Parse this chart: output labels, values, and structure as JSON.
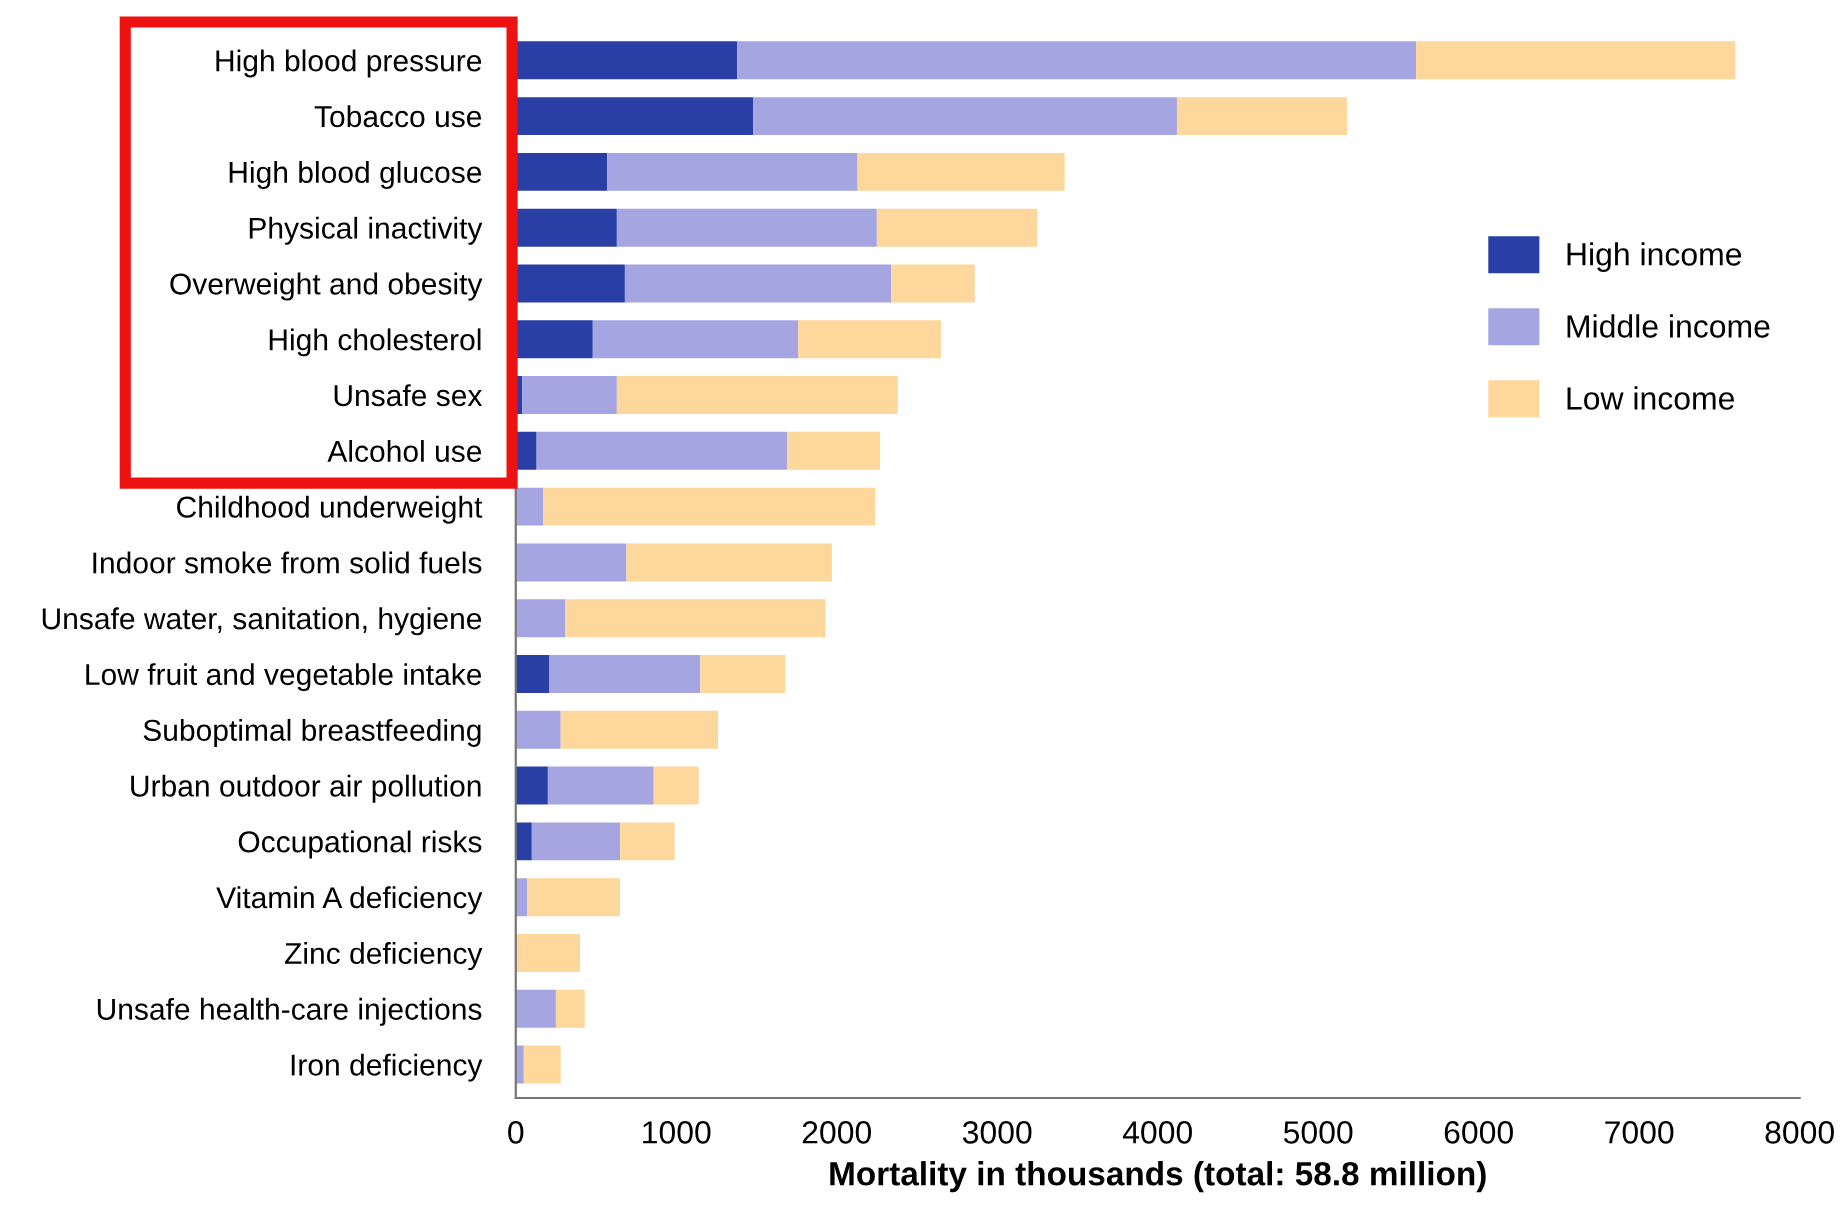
{
  "chart_data": {
    "type": "bar",
    "orientation": "horizontal",
    "stacked": true,
    "xlabel": "Mortality in thousands (total: 58.8 million)",
    "categories": [
      "High blood pressure",
      "Tobacco use",
      "High blood glucose",
      "Physical inactivity",
      "Overweight and obesity",
      "High cholesterol",
      "Unsafe sex",
      "Alcohol use",
      "Childhood underweight",
      "Indoor smoke from solid fuels",
      "Unsafe water, sanitation, hygiene",
      "Low fruit and vegetable intake",
      "Suboptimal breastfeeding",
      "Urban outdoor air pollution",
      "Occupational risks",
      "Vitamin A deficiency",
      "Zinc deficiency",
      "Unsafe health-care injections",
      "Iron deficiency"
    ],
    "series": [
      {
        "name": "High income",
        "color": "#2a3fa6",
        "values": [
          1380,
          1480,
          570,
          630,
          680,
          480,
          40,
          130,
          0,
          0,
          0,
          210,
          0,
          200,
          100,
          0,
          0,
          0,
          0
        ]
      },
      {
        "name": "Middle income",
        "color": "#a5a5e1",
        "values": [
          4230,
          2640,
          1560,
          1620,
          1660,
          1280,
          590,
          1560,
          170,
          690,
          310,
          940,
          280,
          660,
          550,
          70,
          null,
          250,
          50
        ]
      },
      {
        "name": "Low income",
        "color": "#fdd79b",
        "values": [
          1990,
          1060,
          1290,
          1000,
          520,
          890,
          1750,
          580,
          2070,
          1280,
          1620,
          530,
          980,
          280,
          340,
          580,
          400,
          180,
          230
        ]
      }
    ],
    "xlim": [
      0,
      8000
    ],
    "xticks": [
      0,
      1000,
      2000,
      3000,
      4000,
      5000,
      6000,
      7000,
      8000
    ],
    "grid": false,
    "legend": "right"
  }
}
